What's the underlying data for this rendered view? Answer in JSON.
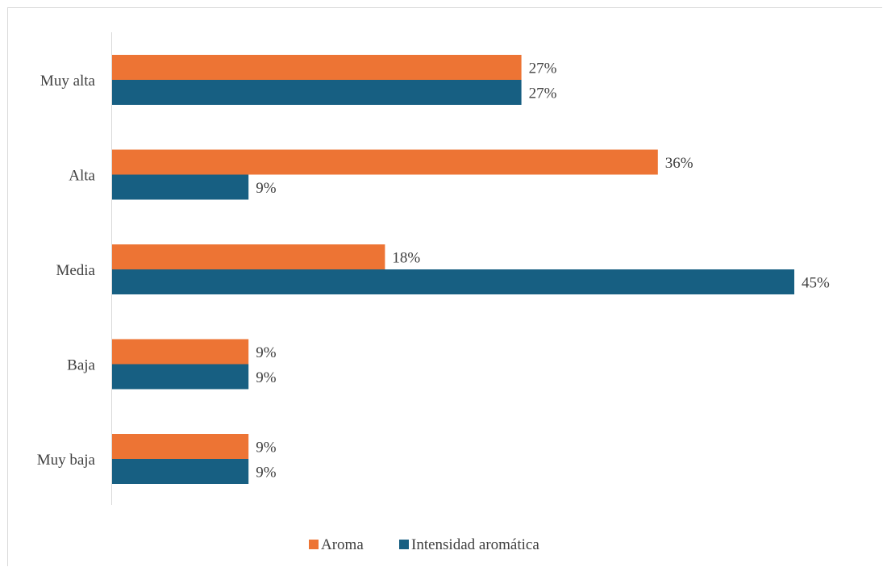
{
  "chart_data": {
    "type": "bar",
    "orientation": "horizontal",
    "title": "",
    "xlabel": "",
    "ylabel": "",
    "xlim": [
      0,
      45
    ],
    "grid": false,
    "legend_position": "bottom",
    "categories": [
      "Muy alta",
      "Alta",
      "Media",
      "Baja",
      "Muy baja"
    ],
    "series": [
      {
        "name": "Aroma",
        "color": "#ed7434",
        "values": [
          27,
          36,
          18,
          9,
          9
        ]
      },
      {
        "name": "Intensidad aromática",
        "color": "#175f82",
        "values": [
          27,
          9,
          45,
          9,
          9
        ]
      }
    ],
    "value_labels": [
      [
        "27%",
        "36%",
        "18%",
        "9%",
        "9%"
      ],
      [
        "27%",
        "9%",
        "45%",
        "9%",
        "9%"
      ]
    ]
  }
}
